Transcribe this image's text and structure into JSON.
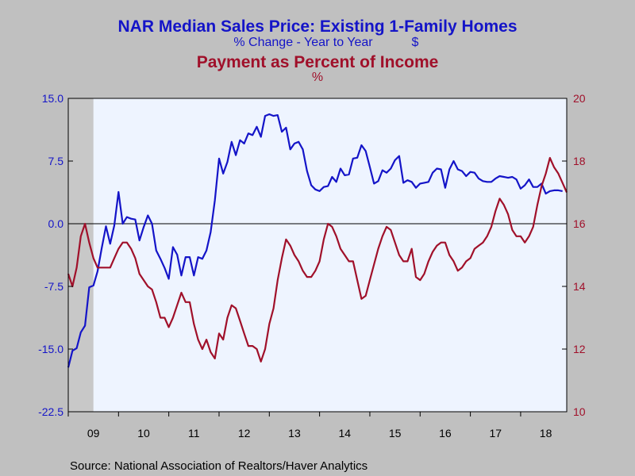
{
  "chart_data": {
    "type": "line",
    "title": "NAR Median Sales Price: Existing 1-Family Homes",
    "subtitle_left": "% Change - Year to Year",
    "subtitle_left_unit": "$",
    "title2": "Payment as Percent of Income",
    "title2_unit": "%",
    "source": "Source:  National Association of Realtors/Haver Analytics",
    "left_axis": {
      "ylim": [
        -22.5,
        15.0
      ],
      "ticks": [
        "15.0",
        "7.5",
        "0.0",
        "-7.5",
        "-15.0",
        "-22.5"
      ],
      "tick_values": [
        15,
        7.5,
        0,
        -7.5,
        -15,
        -22.5
      ]
    },
    "right_axis": {
      "ylim": [
        10,
        20
      ],
      "ticks": [
        "20",
        "18",
        "16",
        "14",
        "12",
        "10"
      ],
      "tick_values": [
        20,
        18,
        16,
        14,
        12,
        10
      ]
    },
    "x_axis": {
      "range": [
        2009.0,
        2018.917
      ],
      "labels": [
        "09",
        "10",
        "11",
        "12",
        "13",
        "14",
        "15",
        "16",
        "17",
        "18"
      ],
      "label_positions": [
        2009.5,
        2010.5,
        2011.5,
        2012.5,
        2013.5,
        2014.5,
        2015.5,
        2016.5,
        2017.5,
        2018.5
      ]
    },
    "recession_shading": [
      2009.0,
      2009.5
    ],
    "zero_line": 0,
    "colors": {
      "series1": "#1414c8",
      "series2": "#a0102a",
      "plot_bg": "#eef4ff",
      "frame_bg": "#c0c0c0",
      "recession": "#c8c8c8"
    },
    "series": [
      {
        "axis": "left",
        "x_start": 2009.0,
        "x_step": 0.08333,
        "values": [
          -17.2,
          -15.2,
          -14.9,
          -13.0,
          -12.2,
          -7.6,
          -7.4,
          -5.7,
          -2.9,
          -0.3,
          -2.4,
          -0.2,
          3.8,
          0.0,
          0.8,
          0.6,
          0.5,
          -2.0,
          -0.4,
          1.0,
          0.0,
          -3.2,
          -4.2,
          -5.3,
          -6.6,
          -2.8,
          -3.7,
          -6.2,
          -4.0,
          -4.0,
          -6.2,
          -4.0,
          -4.2,
          -3.2,
          -1.0,
          2.8,
          7.8,
          6.0,
          7.4,
          9.8,
          8.2,
          10.0,
          9.6,
          10.8,
          10.6,
          11.6,
          10.4,
          12.9,
          13.1,
          12.9,
          13.0,
          11.0,
          11.5,
          8.9,
          9.6,
          9.8,
          8.9,
          6.3,
          4.6,
          4.1,
          3.9,
          4.4,
          4.5,
          5.6,
          5.0,
          6.6,
          5.8,
          5.9,
          7.8,
          7.9,
          9.4,
          8.7,
          6.8,
          4.8,
          5.1,
          6.4,
          6.1,
          6.6,
          7.6,
          8.1,
          4.9,
          5.2,
          5.0,
          4.3,
          4.8,
          4.9,
          5.0,
          6.1,
          6.6,
          6.5,
          4.3,
          6.5,
          7.5,
          6.5,
          6.3,
          5.7,
          6.2,
          6.1,
          5.4,
          5.1,
          5.0,
          5.0,
          5.4,
          5.7,
          5.6,
          5.5,
          5.6,
          5.3,
          4.2,
          4.6,
          5.3,
          4.4,
          4.4,
          4.8,
          3.6,
          3.9,
          4.0,
          4.0,
          3.9
        ]
      },
      {
        "axis": "right",
        "x_start": 2009.0,
        "x_step": 0.08333,
        "values": [
          14.4,
          14.0,
          14.6,
          15.6,
          16.0,
          15.4,
          14.9,
          14.6,
          14.6,
          14.6,
          14.6,
          14.9,
          15.2,
          15.4,
          15.4,
          15.2,
          14.9,
          14.4,
          14.2,
          14.0,
          13.9,
          13.5,
          13.0,
          13.0,
          12.7,
          13.0,
          13.4,
          13.8,
          13.5,
          13.5,
          12.8,
          12.3,
          12.0,
          12.3,
          11.9,
          11.7,
          12.5,
          12.3,
          13.0,
          13.4,
          13.3,
          12.9,
          12.5,
          12.1,
          12.1,
          12.0,
          11.6,
          12.0,
          12.8,
          13.3,
          14.2,
          14.9,
          15.5,
          15.3,
          15.0,
          14.8,
          14.5,
          14.3,
          14.3,
          14.5,
          14.8,
          15.5,
          16.0,
          15.9,
          15.6,
          15.2,
          15.0,
          14.8,
          14.8,
          14.2,
          13.6,
          13.7,
          14.2,
          14.7,
          15.2,
          15.6,
          15.9,
          15.8,
          15.4,
          15.0,
          14.8,
          14.8,
          15.2,
          14.3,
          14.2,
          14.4,
          14.8,
          15.1,
          15.3,
          15.4,
          15.4,
          15.0,
          14.8,
          14.5,
          14.6,
          14.8,
          14.9,
          15.2,
          15.3,
          15.4,
          15.6,
          15.9,
          16.4,
          16.8,
          16.6,
          16.3,
          15.8,
          15.6,
          15.6,
          15.4,
          15.6,
          15.9,
          16.6,
          17.2,
          17.6,
          18.1,
          17.8,
          17.6,
          17.3,
          17.0
        ]
      }
    ]
  }
}
